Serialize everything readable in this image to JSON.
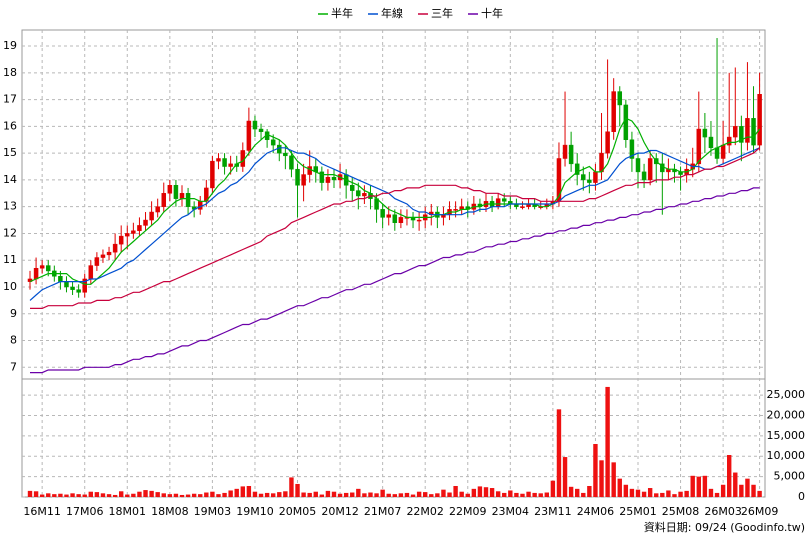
{
  "chart_data": {
    "type": "candlestick",
    "footer": "資料日期: 09/24 (Goodinfo.tw)",
    "up_color": "#e00000",
    "down_color": "#00a000",
    "grid": true,
    "legend": "top",
    "categories": [
      null,
      null,
      "16M11",
      null,
      null,
      null,
      null,
      null,
      null,
      "17M06",
      null,
      null,
      null,
      null,
      null,
      null,
      "18M01",
      null,
      null,
      null,
      null,
      null,
      null,
      "18M08",
      null,
      null,
      null,
      null,
      null,
      null,
      "19M03",
      null,
      null,
      null,
      null,
      null,
      null,
      "19M10",
      null,
      null,
      null,
      null,
      null,
      null,
      "20M05",
      null,
      null,
      null,
      null,
      null,
      null,
      "20M12",
      null,
      null,
      null,
      null,
      null,
      null,
      "21M07",
      null,
      null,
      null,
      null,
      null,
      null,
      "22M02",
      null,
      null,
      null,
      null,
      null,
      null,
      "22M09",
      null,
      null,
      null,
      null,
      null,
      null,
      "23M04",
      null,
      null,
      null,
      null,
      null,
      null,
      "23M11",
      null,
      null,
      null,
      null,
      null,
      null,
      "24M06",
      null,
      null,
      null,
      null,
      null,
      null,
      "25M01",
      null,
      null,
      null,
      null,
      null,
      null,
      "25M08",
      null,
      null,
      null,
      null,
      null,
      null,
      "26M03",
      null,
      null,
      null,
      null,
      null,
      "26M09"
    ],
    "ylim": [
      6.6,
      19.6
    ],
    "yticks": [
      7,
      8,
      9,
      10,
      11,
      12,
      13,
      14,
      15,
      16,
      17,
      18,
      19
    ],
    "open": [
      10.2,
      10.3,
      10.7,
      10.8,
      10.6,
      10.4,
      10.2,
      10.0,
      9.9,
      9.8,
      10.3,
      10.8,
      11.1,
      11.2,
      11.3,
      11.6,
      11.9,
      12.0,
      12.1,
      12.3,
      12.5,
      12.8,
      13.0,
      13.5,
      13.8,
      13.3,
      13.5,
      13.0,
      12.9,
      13.2,
      13.7,
      14.7,
      14.8,
      14.5,
      14.6,
      14.5,
      15.1,
      16.2,
      15.9,
      15.8,
      15.5,
      15.3,
      15.0,
      14.9,
      14.4,
      13.8,
      14.2,
      14.5,
      14.3,
      13.9,
      14.1,
      14.0,
      14.2,
      13.8,
      13.6,
      13.4,
      13.5,
      13.3,
      12.9,
      12.6,
      12.7,
      12.4,
      12.6,
      12.6,
      12.5,
      12.5,
      12.7,
      12.8,
      12.6,
      12.7,
      12.9,
      12.9,
      13.0,
      12.9,
      13.1,
      13.0,
      13.2,
      13.0,
      13.3,
      13.2,
      13.1,
      13.0,
      13.0,
      13.1,
      13.0,
      13.0,
      13.1,
      13.2,
      14.8,
      15.3,
      14.6,
      14.2,
      14.0,
      13.9,
      14.3,
      15.0,
      15.8,
      17.3,
      16.8,
      15.5,
      14.8,
      14.3,
      14.0,
      14.8,
      14.6,
      14.3,
      14.4,
      14.3,
      14.2,
      14.4,
      14.6,
      15.9,
      15.6,
      15.2,
      14.8,
      15.3,
      15.6,
      16.0,
      15.4,
      16.3,
      15.3
    ],
    "high": [
      10.6,
      11.1,
      11.0,
      11.0,
      10.8,
      10.6,
      10.4,
      10.2,
      10.1,
      10.5,
      11.0,
      11.3,
      11.4,
      11.5,
      12.0,
      12.3,
      12.3,
      12.4,
      12.6,
      12.8,
      13.2,
      13.3,
      13.9,
      14.0,
      14.0,
      13.8,
      13.7,
      13.2,
      13.4,
      14.0,
      14.9,
      15.0,
      15.0,
      14.9,
      14.9,
      15.4,
      16.7,
      16.4,
      16.1,
      15.9,
      15.7,
      15.5,
      15.3,
      15.1,
      14.6,
      14.6,
      15.1,
      14.8,
      14.5,
      14.4,
      14.4,
      14.6,
      14.4,
      14.1,
      13.9,
      13.8,
      13.8,
      13.5,
      13.1,
      13.0,
      12.9,
      12.9,
      12.9,
      12.8,
      12.8,
      13.0,
      13.1,
      13.0,
      13.0,
      13.2,
      13.2,
      13.3,
      13.2,
      13.4,
      13.3,
      13.5,
      13.4,
      13.5,
      13.5,
      13.4,
      13.3,
      13.2,
      13.3,
      13.3,
      13.2,
      13.3,
      13.4,
      15.4,
      17.3,
      15.8,
      15.0,
      14.5,
      14.3,
      14.6,
      16.5,
      18.5,
      17.8,
      17.5,
      17.0,
      15.8,
      15.0,
      14.6,
      15.1,
      15.0,
      15.0,
      14.8,
      14.6,
      14.5,
      14.8,
      15.2,
      17.3,
      16.5,
      16.2,
      19.3,
      16.2,
      18.0,
      18.2,
      16.4,
      18.4,
      17.5,
      18.0
    ],
    "low": [
      9.9,
      10.1,
      10.5,
      10.4,
      10.2,
      9.9,
      9.8,
      9.7,
      9.6,
      9.6,
      10.1,
      10.6,
      10.9,
      11.0,
      11.0,
      11.3,
      11.4,
      11.8,
      11.9,
      12.1,
      12.3,
      12.6,
      12.8,
      13.2,
      13.0,
      13.0,
      12.7,
      12.6,
      12.7,
      13.0,
      13.5,
      14.4,
      14.2,
      14.2,
      14.3,
      14.3,
      14.9,
      15.6,
      15.5,
      15.2,
      15.0,
      14.7,
      14.4,
      14.1,
      12.6,
      13.2,
      13.9,
      13.9,
      13.6,
      13.6,
      13.7,
      13.7,
      13.3,
      13.2,
      12.9,
      13.1,
      12.9,
      12.4,
      12.2,
      12.3,
      12.1,
      12.2,
      12.3,
      12.2,
      12.1,
      12.2,
      12.3,
      12.2,
      12.3,
      12.5,
      12.6,
      12.7,
      12.6,
      12.7,
      12.8,
      12.8,
      12.8,
      12.9,
      13.0,
      12.9,
      12.9,
      12.9,
      12.9,
      12.9,
      12.9,
      12.9,
      12.9,
      13.0,
      14.5,
      14.3,
      13.8,
      13.6,
      13.5,
      13.6,
      14.0,
      14.8,
      15.5,
      16.0,
      15.2,
      14.3,
      13.7,
      13.7,
      13.8,
      13.9,
      12.7,
      14.0,
      13.9,
      13.6,
      13.9,
      14.1,
      14.3,
      15.0,
      14.9,
      14.6,
      14.6,
      15.0,
      15.3,
      14.7,
      15.1,
      15.0,
      15.1
    ],
    "close": [
      10.3,
      10.7,
      10.8,
      10.6,
      10.4,
      10.2,
      10.0,
      9.9,
      9.8,
      10.3,
      10.8,
      11.1,
      11.2,
      11.3,
      11.6,
      11.9,
      12.0,
      12.1,
      12.3,
      12.5,
      12.8,
      13.0,
      13.5,
      13.8,
      13.3,
      13.5,
      13.0,
      12.9,
      13.2,
      13.7,
      14.7,
      14.8,
      14.5,
      14.6,
      14.5,
      15.1,
      16.2,
      15.9,
      15.8,
      15.5,
      15.3,
      15.0,
      14.9,
      14.4,
      13.8,
      14.2,
      14.5,
      14.3,
      13.9,
      14.1,
      14.0,
      14.2,
      13.8,
      13.6,
      13.4,
      13.5,
      13.3,
      12.9,
      12.6,
      12.7,
      12.4,
      12.6,
      12.6,
      12.5,
      12.5,
      12.7,
      12.8,
      12.6,
      12.7,
      12.9,
      12.9,
      13.0,
      12.9,
      13.1,
      13.0,
      13.2,
      13.0,
      13.3,
      13.2,
      13.1,
      13.0,
      13.0,
      13.1,
      13.0,
      13.0,
      13.1,
      13.2,
      14.8,
      15.3,
      14.6,
      14.2,
      14.0,
      13.9,
      14.3,
      15.0,
      15.8,
      17.3,
      16.8,
      15.5,
      14.8,
      14.3,
      14.0,
      14.8,
      14.6,
      14.3,
      14.4,
      14.3,
      14.2,
      14.4,
      14.6,
      15.9,
      15.6,
      15.2,
      14.8,
      15.3,
      15.6,
      16.0,
      15.4,
      16.3,
      15.3,
      17.2
    ],
    "series": [
      {
        "name": "半年",
        "color": "#00b000",
        "values": [
          10.2,
          10.3,
          10.4,
          10.5,
          10.5,
          10.5,
          10.5,
          10.3,
          10.2,
          10.1,
          10.1,
          10.3,
          10.5,
          10.7,
          11.0,
          11.3,
          11.5,
          11.7,
          11.9,
          12.1,
          12.3,
          12.5,
          12.8,
          13.0,
          13.2,
          13.3,
          13.3,
          13.3,
          13.2,
          13.2,
          13.5,
          13.8,
          14.0,
          14.3,
          14.6,
          14.7,
          15.0,
          15.3,
          15.5,
          15.7,
          15.6,
          15.5,
          15.3,
          15.0,
          14.7,
          14.5,
          14.4,
          14.3,
          14.2,
          14.2,
          14.2,
          14.1,
          14.0,
          13.9,
          13.8,
          13.6,
          13.5,
          13.3,
          13.1,
          12.9,
          12.8,
          12.7,
          12.6,
          12.6,
          12.6,
          12.6,
          12.6,
          12.7,
          12.7,
          12.8,
          12.8,
          12.9,
          12.9,
          13.0,
          13.0,
          13.1,
          13.1,
          13.1,
          13.1,
          13.1,
          13.1,
          13.1,
          13.1,
          13.1,
          13.0,
          13.0,
          13.1,
          13.4,
          13.9,
          14.1,
          14.3,
          14.4,
          14.5,
          14.3,
          14.3,
          14.6,
          15.2,
          15.9,
          16.3,
          16.2,
          15.9,
          15.4,
          15.0,
          14.7,
          14.5,
          14.4,
          14.4,
          14.3,
          14.3,
          14.4,
          14.7,
          14.9,
          15.1,
          15.2,
          15.3,
          15.4,
          15.4,
          15.5,
          15.6,
          15.6,
          15.9
        ]
      },
      {
        "name": "年線",
        "color": "#0050d0",
        "values": [
          9.5,
          9.7,
          9.9,
          10.0,
          10.1,
          10.2,
          10.2,
          10.2,
          10.2,
          10.2,
          10.3,
          10.3,
          10.4,
          10.5,
          10.6,
          10.7,
          10.9,
          11.0,
          11.2,
          11.4,
          11.6,
          11.8,
          12.0,
          12.2,
          12.4,
          12.6,
          12.7,
          12.9,
          13.0,
          13.1,
          13.3,
          13.5,
          13.6,
          13.8,
          13.9,
          14.1,
          14.3,
          14.6,
          14.8,
          15.0,
          15.1,
          15.2,
          15.2,
          15.1,
          15.0,
          15.0,
          14.9,
          14.8,
          14.6,
          14.5,
          14.4,
          14.3,
          14.2,
          14.1,
          14.0,
          13.9,
          13.8,
          13.7,
          13.6,
          13.5,
          13.3,
          13.2,
          13.1,
          12.9,
          12.8,
          12.8,
          12.7,
          12.7,
          12.7,
          12.7,
          12.7,
          12.7,
          12.8,
          12.8,
          12.9,
          12.9,
          13.0,
          13.0,
          13.0,
          13.1,
          13.1,
          13.1,
          13.1,
          13.1,
          13.1,
          13.1,
          13.1,
          13.2,
          13.4,
          13.5,
          13.6,
          13.7,
          13.8,
          13.8,
          13.9,
          14.0,
          14.3,
          14.6,
          14.8,
          14.9,
          15.0,
          15.0,
          15.1,
          15.1,
          15.0,
          14.9,
          14.8,
          14.7,
          14.6,
          14.5,
          14.5,
          14.4,
          14.4,
          14.5,
          14.6,
          14.7,
          14.8,
          14.9,
          15.0,
          15.1,
          15.2
        ]
      },
      {
        "name": "三年",
        "color": "#c8003c",
        "values": [
          9.2,
          9.2,
          9.2,
          9.3,
          9.3,
          9.3,
          9.3,
          9.3,
          9.4,
          9.4,
          9.4,
          9.5,
          9.5,
          9.5,
          9.6,
          9.6,
          9.7,
          9.8,
          9.8,
          9.9,
          10.0,
          10.1,
          10.2,
          10.2,
          10.3,
          10.4,
          10.5,
          10.6,
          10.7,
          10.8,
          10.9,
          11.0,
          11.1,
          11.2,
          11.3,
          11.4,
          11.5,
          11.6,
          11.7,
          11.9,
          12.0,
          12.1,
          12.2,
          12.4,
          12.5,
          12.6,
          12.7,
          12.8,
          12.9,
          13.0,
          13.1,
          13.1,
          13.2,
          13.2,
          13.3,
          13.3,
          13.4,
          13.4,
          13.5,
          13.5,
          13.6,
          13.6,
          13.7,
          13.7,
          13.7,
          13.8,
          13.8,
          13.8,
          13.8,
          13.8,
          13.8,
          13.7,
          13.7,
          13.6,
          13.6,
          13.5,
          13.5,
          13.5,
          13.4,
          13.4,
          13.4,
          13.3,
          13.3,
          13.3,
          13.2,
          13.2,
          13.2,
          13.2,
          13.2,
          13.2,
          13.2,
          13.2,
          13.3,
          13.3,
          13.4,
          13.5,
          13.6,
          13.7,
          13.8,
          13.8,
          13.9,
          13.9,
          13.9,
          14.0,
          14.0,
          14.0,
          14.1,
          14.1,
          14.2,
          14.2,
          14.3,
          14.4,
          14.4,
          14.5,
          14.5,
          14.6,
          14.7,
          14.8,
          14.9,
          15.0,
          15.2
        ]
      },
      {
        "name": "十年",
        "color": "#6a00a8",
        "values": [
          6.8,
          6.8,
          6.8,
          6.9,
          6.9,
          6.9,
          6.9,
          6.9,
          6.9,
          7.0,
          7.0,
          7.0,
          7.0,
          7.0,
          7.1,
          7.1,
          7.2,
          7.3,
          7.3,
          7.4,
          7.4,
          7.5,
          7.5,
          7.6,
          7.7,
          7.8,
          7.8,
          7.9,
          8.0,
          8.0,
          8.1,
          8.2,
          8.3,
          8.4,
          8.5,
          8.6,
          8.6,
          8.7,
          8.8,
          8.8,
          8.9,
          9.0,
          9.1,
          9.2,
          9.3,
          9.3,
          9.4,
          9.5,
          9.6,
          9.6,
          9.7,
          9.8,
          9.9,
          9.9,
          10.0,
          10.1,
          10.1,
          10.2,
          10.3,
          10.4,
          10.5,
          10.5,
          10.6,
          10.7,
          10.8,
          10.8,
          10.9,
          11.0,
          11.1,
          11.1,
          11.2,
          11.2,
          11.3,
          11.3,
          11.4,
          11.5,
          11.5,
          11.6,
          11.6,
          11.7,
          11.7,
          11.8,
          11.8,
          11.9,
          11.9,
          12.0,
          12.0,
          12.1,
          12.1,
          12.2,
          12.2,
          12.3,
          12.3,
          12.4,
          12.4,
          12.5,
          12.5,
          12.6,
          12.6,
          12.7,
          12.7,
          12.8,
          12.8,
          12.9,
          12.9,
          13.0,
          13.0,
          13.1,
          13.1,
          13.2,
          13.2,
          13.3,
          13.3,
          13.4,
          13.4,
          13.5,
          13.5,
          13.6,
          13.6,
          13.7,
          13.7
        ]
      }
    ],
    "volume": {
      "color": "#ee1111",
      "ylim": [
        0,
        28700
      ],
      "yticks": [
        0,
        {
          "value": 5000,
          "label": "5,000"
        },
        {
          "value": 10000,
          "label": "10,000"
        },
        {
          "value": 15000,
          "label": "15,000"
        },
        {
          "value": 20000,
          "label": "20,000"
        },
        {
          "value": 25000,
          "label": "25,000"
        }
      ],
      "values": [
        1500,
        1400,
        600,
        900,
        700,
        800,
        600,
        900,
        700,
        600,
        1300,
        1200,
        900,
        700,
        500,
        1400,
        600,
        800,
        1300,
        1700,
        1500,
        1200,
        900,
        700,
        800,
        500,
        600,
        800,
        700,
        1100,
        1300,
        700,
        1000,
        1600,
        2000,
        2600,
        2700,
        1300,
        800,
        1000,
        900,
        1200,
        1400,
        4800,
        3200,
        1100,
        1000,
        1300,
        600,
        1500,
        1300,
        800,
        1000,
        1100,
        2000,
        900,
        1100,
        900,
        1800,
        800,
        700,
        900,
        1000,
        600,
        1300,
        1200,
        700,
        900,
        1800,
        1100,
        2700,
        1300,
        800,
        2000,
        2600,
        2400,
        2200,
        1400,
        1000,
        1600,
        1000,
        800,
        1300,
        1000,
        900,
        1100,
        4000,
        21500,
        9800,
        2500,
        2000,
        1000,
        2700,
        13000,
        9000,
        27000,
        8500,
        4500,
        3000,
        2000,
        1800,
        1300,
        2200,
        900,
        1000,
        1600,
        700,
        1300,
        1500,
        5200,
        5000,
        5200,
        2000,
        1000,
        3000,
        10300,
        6000,
        3000,
        4500,
        3000,
        1500
      ]
    }
  }
}
